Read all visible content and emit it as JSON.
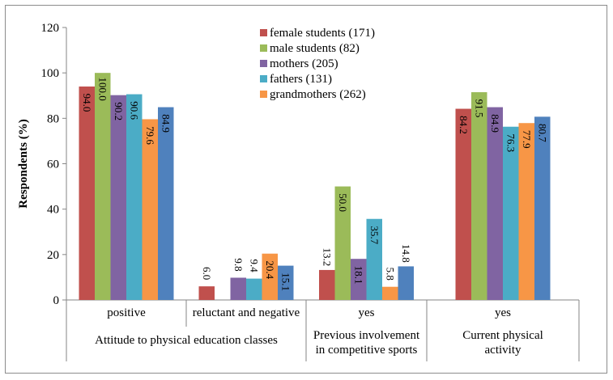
{
  "chart_data": {
    "type": "bar",
    "title": "",
    "xlabel": "",
    "ylabel": "Respondents (%)",
    "ylim": [
      0,
      120
    ],
    "yticks": [
      "0",
      "20",
      "40",
      "60",
      "80",
      "100",
      "120"
    ],
    "categories": [
      "positive",
      "reluctant and negative",
      "yes",
      "yes"
    ],
    "groups": [
      {
        "label": "Attitude to physical education classes",
        "categories": [
          "positive",
          "reluctant and negative"
        ]
      },
      {
        "label": "Previous involvement in competitive sports",
        "lines": [
          "Previous involvement",
          "in competitive sports"
        ],
        "categories": [
          "yes"
        ]
      },
      {
        "label": "Current physical activity",
        "lines": [
          "Current physical",
          "activity"
        ],
        "categories": [
          "yes"
        ]
      }
    ],
    "group_lines": [
      [
        "Attitude to physical education classes"
      ],
      [
        "Previous involvement",
        "in competitive sports"
      ],
      [
        "Current physical",
        "activity"
      ]
    ],
    "series": [
      {
        "name": "female students (171)",
        "color": "#c0504d",
        "values": [
          94.0,
          6.0,
          13.2,
          84.2
        ],
        "labels": [
          "94.0",
          "6.0",
          "13.2",
          "84.2"
        ]
      },
      {
        "name": "male students (82)",
        "color": "#9bbb59",
        "values": [
          100.0,
          null,
          50.0,
          91.5
        ],
        "labels": [
          "100.0",
          "",
          "50.0",
          "91.5"
        ]
      },
      {
        "name": "mothers (205)",
        "color": "#8064a2",
        "values": [
          90.2,
          9.8,
          18.1,
          84.9
        ],
        "labels": [
          "90.2",
          "9.8",
          "18.1",
          "84.9"
        ]
      },
      {
        "name": "fathers (131)",
        "color": "#4bacc6",
        "values": [
          90.6,
          9.4,
          35.7,
          76.3
        ],
        "labels": [
          "90.6",
          "9.4",
          "35.7",
          "76.3"
        ]
      },
      {
        "name": "grandmothers (262)",
        "color": "#f79646",
        "values": [
          79.6,
          20.4,
          5.8,
          77.9
        ],
        "labels": [
          "79.6",
          "20.4",
          "5.8",
          "77.9"
        ]
      },
      {
        "name": "",
        "color": "#4f81bd",
        "values": [
          84.9,
          15.1,
          14.8,
          80.7
        ],
        "labels": [
          "84.9",
          "15.1",
          "14.8",
          "80.7"
        ]
      }
    ],
    "grid": false,
    "legend_position": "top-center"
  }
}
